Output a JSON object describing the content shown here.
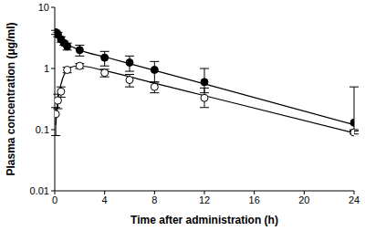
{
  "chart_data": {
    "type": "scatter",
    "x_label": "Time after administration (h)",
    "y_label": "Plasma concentration (μg/ml)",
    "xlim": [
      0,
      24
    ],
    "xticks": [
      0,
      4,
      8,
      12,
      16,
      20,
      24
    ],
    "ylim": [
      0.01,
      10
    ],
    "yticks": [
      0.01,
      0.1,
      1,
      10
    ],
    "log": "y",
    "grid": false,
    "series": [
      {
        "type": "scatter",
        "marker": "filled_circle",
        "color": "#000000",
        "x": [
          0.083,
          0.25,
          0.5,
          0.75,
          1,
          2,
          4,
          6,
          8,
          12,
          24
        ],
        "values": [
          3.9,
          3.6,
          3.0,
          2.6,
          2.3,
          2.0,
          1.5,
          1.25,
          0.95,
          0.6,
          0.13
        ],
        "errors": [
          [
            0.3,
            0.3
          ],
          [
            0.3,
            0.3
          ],
          [
            0.3,
            0.3
          ],
          [
            0.2,
            0.2
          ],
          [
            0.3,
            0.3
          ],
          [
            0.4,
            0.4
          ],
          [
            0.4,
            0.4
          ],
          [
            0.35,
            0.35
          ],
          [
            0.35,
            0.35
          ],
          [
            0.2,
            0.4
          ],
          [
            0.03,
            0.37
          ]
        ]
      },
      {
        "type": "scatter",
        "marker": "open_circle",
        "color": "#000000",
        "x": [
          0.083,
          0.25,
          0.5,
          1,
          2,
          4,
          6,
          8,
          12,
          24
        ],
        "values": [
          0.18,
          0.3,
          0.42,
          0.95,
          1.1,
          0.85,
          0.65,
          0.5,
          0.33,
          0.09
        ],
        "errors": [
          [
            0.1,
            0.05
          ],
          [
            0.08,
            0.08
          ],
          [
            0.08,
            0.08
          ],
          [
            0.1,
            0.1
          ],
          [
            0.1,
            0.1
          ],
          [
            0.12,
            0.12
          ],
          [
            0.15,
            0.15
          ],
          [
            0.1,
            0.1
          ],
          [
            0.1,
            0.15
          ],
          [
            0.005,
            0.005
          ]
        ]
      },
      {
        "type": "line",
        "line_style": "solid",
        "color": "#000000",
        "x": [
          0,
          0.5,
          1,
          2,
          4,
          8,
          12,
          24
        ],
        "values": [
          4.0,
          3.1,
          2.5,
          2.0,
          1.55,
          0.93,
          0.56,
          0.12
        ]
      },
      {
        "type": "line",
        "line_style": "solid",
        "color": "#000000",
        "x": [
          0.083,
          0.25,
          0.5,
          1,
          1.5,
          2,
          4,
          8,
          12,
          24
        ],
        "values": [
          0.12,
          0.3,
          0.55,
          0.95,
          1.08,
          1.1,
          0.92,
          0.575,
          0.36,
          0.088
        ]
      }
    ]
  }
}
